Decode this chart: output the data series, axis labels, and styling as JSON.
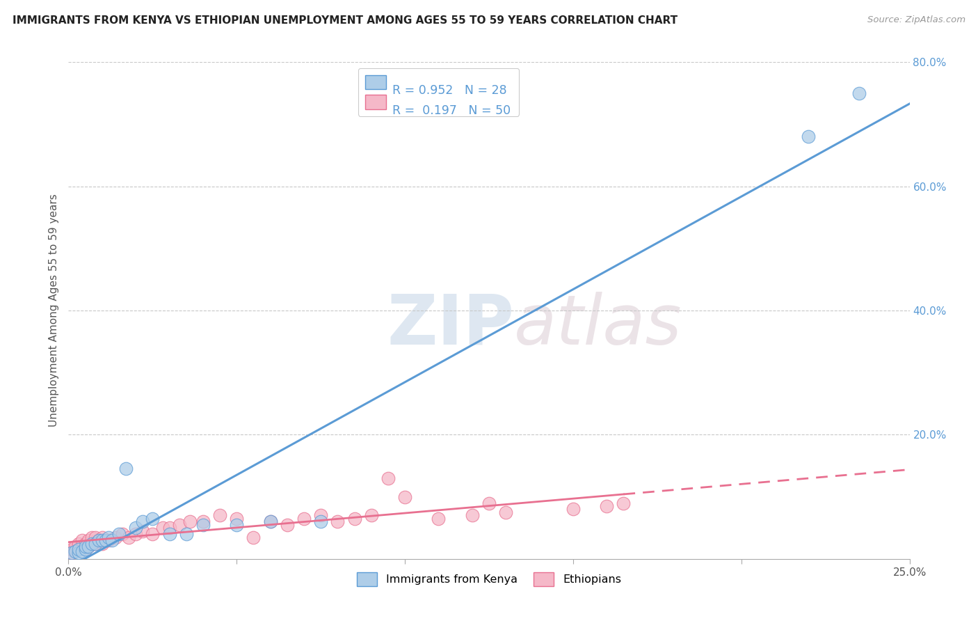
{
  "title": "IMMIGRANTS FROM KENYA VS ETHIOPIAN UNEMPLOYMENT AMONG AGES 55 TO 59 YEARS CORRELATION CHART",
  "source": "Source: ZipAtlas.com",
  "ylabel": "Unemployment Among Ages 55 to 59 years",
  "xlim": [
    0.0,
    0.25
  ],
  "ylim": [
    0.0,
    0.8
  ],
  "ytick_vals": [
    0.2,
    0.4,
    0.6,
    0.8
  ],
  "ytick_labels": [
    "20.0%",
    "40.0%",
    "60.0%",
    "80.0%"
  ],
  "legend_text1": "R = 0.952  N = 28",
  "legend_text2": "R =  0.197  N = 50",
  "color_kenya_fill": "#aecde8",
  "color_kenya_edge": "#5b9bd5",
  "color_eth_fill": "#f5b8c8",
  "color_eth_edge": "#e87090",
  "line_color_kenya": "#5b9bd5",
  "line_color_eth": "#e87090",
  "legend_color": "#5b9bd5",
  "watermark_zip": "ZIP",
  "watermark_atlas": "atlas",
  "background_color": "#ffffff",
  "kenya_x": [
    0.001,
    0.002,
    0.003,
    0.003,
    0.004,
    0.005,
    0.005,
    0.006,
    0.007,
    0.008,
    0.009,
    0.01,
    0.011,
    0.012,
    0.013,
    0.015,
    0.017,
    0.02,
    0.022,
    0.025,
    0.03,
    0.035,
    0.04,
    0.05,
    0.06,
    0.075,
    0.22,
    0.235
  ],
  "kenya_y": [
    0.01,
    0.012,
    0.01,
    0.015,
    0.012,
    0.015,
    0.02,
    0.02,
    0.025,
    0.025,
    0.03,
    0.03,
    0.03,
    0.035,
    0.03,
    0.04,
    0.145,
    0.05,
    0.06,
    0.065,
    0.04,
    0.04,
    0.055,
    0.055,
    0.06,
    0.06,
    0.68,
    0.75
  ],
  "eth_x": [
    0.001,
    0.001,
    0.002,
    0.002,
    0.003,
    0.003,
    0.004,
    0.004,
    0.005,
    0.005,
    0.006,
    0.006,
    0.007,
    0.007,
    0.008,
    0.008,
    0.009,
    0.01,
    0.01,
    0.012,
    0.014,
    0.016,
    0.018,
    0.02,
    0.022,
    0.025,
    0.028,
    0.03,
    0.033,
    0.036,
    0.04,
    0.045,
    0.05,
    0.055,
    0.06,
    0.065,
    0.07,
    0.075,
    0.08,
    0.085,
    0.09,
    0.095,
    0.1,
    0.11,
    0.12,
    0.13,
    0.15,
    0.16,
    0.165,
    0.125
  ],
  "eth_y": [
    0.01,
    0.015,
    0.015,
    0.02,
    0.015,
    0.025,
    0.02,
    0.03,
    0.015,
    0.025,
    0.02,
    0.03,
    0.025,
    0.035,
    0.025,
    0.035,
    0.03,
    0.025,
    0.035,
    0.03,
    0.035,
    0.04,
    0.035,
    0.04,
    0.045,
    0.04,
    0.05,
    0.05,
    0.055,
    0.06,
    0.06,
    0.07,
    0.065,
    0.035,
    0.06,
    0.055,
    0.065,
    0.07,
    0.06,
    0.065,
    0.07,
    0.13,
    0.1,
    0.065,
    0.07,
    0.075,
    0.08,
    0.085,
    0.09,
    0.09
  ]
}
